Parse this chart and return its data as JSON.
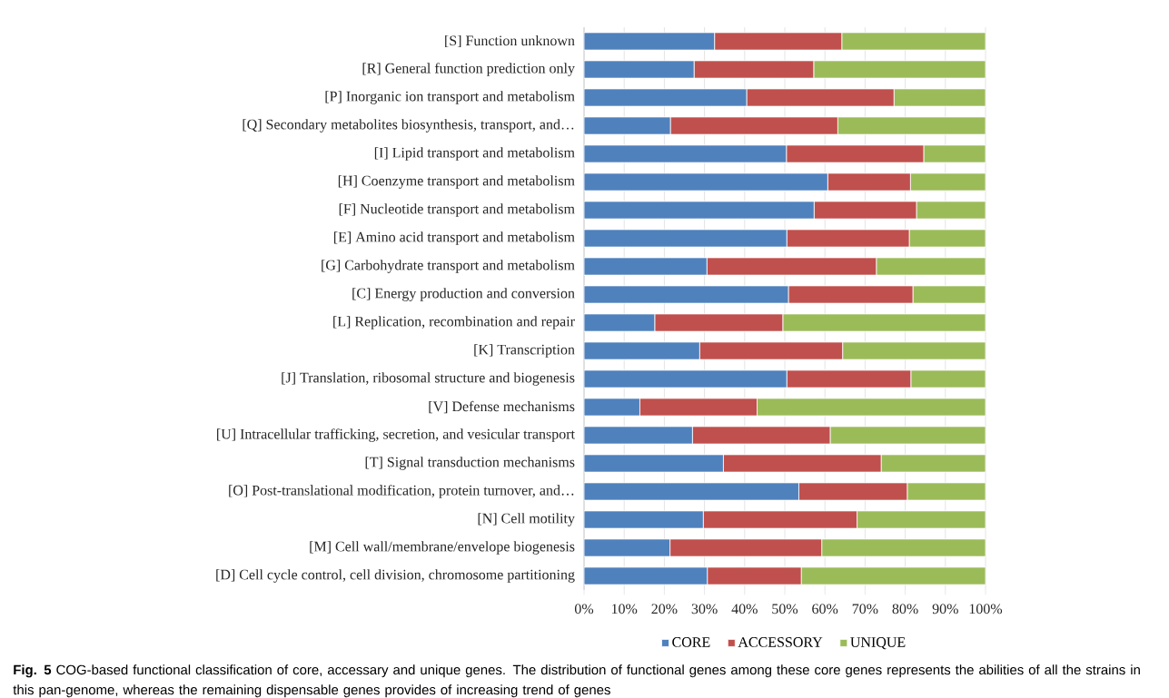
{
  "chart_data": {
    "type": "bar",
    "orientation": "horizontal",
    "stacked": true,
    "categories": [
      "[S] Function unknown",
      "[R] General function prediction only",
      "[P] Inorganic ion transport and metabolism",
      "[Q] Secondary metabolites biosynthesis, transport, and…",
      "[I] Lipid transport and metabolism",
      "[H] Coenzyme transport and metabolism",
      "[F] Nucleotide transport and metabolism",
      "[E] Amino acid transport and metabolism",
      "[G] Carbohydrate transport and metabolism",
      "[C] Energy production and conversion",
      "[L] Replication, recombination and repair",
      "[K] Transcription",
      "[J] Translation, ribosomal structure and biogenesis",
      "[V] Defense mechanisms",
      "[U] Intracellular trafficking, secretion, and vesicular transport",
      "[T] Signal transduction mechanisms",
      "[O] Post-translational modification, protein turnover, and…",
      "[N] Cell motility",
      "[M] Cell wall/membrane/envelope biogenesis",
      "[D] Cell cycle control, cell division, chromosome partitioning"
    ],
    "series": [
      {
        "name": "CORE",
        "color": "#4f81bd",
        "values": [
          32.5,
          27.4,
          40.5,
          21.5,
          50.4,
          60.7,
          57.3,
          50.5,
          30.6,
          50.9,
          17.6,
          28.8,
          50.5,
          13.9,
          27.0,
          34.7,
          53.5,
          29.7,
          21.4,
          30.7
        ]
      },
      {
        "name": "ACCESSORY",
        "color": "#c0504d",
        "values": [
          31.7,
          29.8,
          36.7,
          41.7,
          34.2,
          20.6,
          25.5,
          30.5,
          42.2,
          31.0,
          31.9,
          35.6,
          30.9,
          29.2,
          34.3,
          39.3,
          27.0,
          38.3,
          37.8,
          23.4
        ]
      },
      {
        "name": "UNIQUE",
        "color": "#9bbb59",
        "values": [
          35.8,
          42.8,
          22.8,
          36.8,
          15.4,
          18.7,
          17.2,
          19.0,
          27.2,
          18.1,
          50.5,
          35.6,
          18.6,
          56.9,
          38.7,
          26.0,
          19.5,
          32.0,
          40.8,
          45.9
        ]
      }
    ],
    "xlim": [
      0,
      100
    ],
    "xticks": [
      {
        "value": 0,
        "label": "0%"
      },
      {
        "value": 10,
        "label": "10%"
      },
      {
        "value": 20,
        "label": "20%"
      },
      {
        "value": 30,
        "label": "30%"
      },
      {
        "value": 40,
        "label": "40%"
      },
      {
        "value": 50,
        "label": "50%"
      },
      {
        "value": 60,
        "label": "60%"
      },
      {
        "value": 70,
        "label": "70%"
      },
      {
        "value": 80,
        "label": "80%"
      },
      {
        "value": 90,
        "label": "90%"
      },
      {
        "value": 100,
        "label": "100%"
      }
    ],
    "grid": "x",
    "legend": "bottom",
    "annotations": [
      "**Fig. 5** COG-based functional classification of core, accessary and unique genes. The distribution of functional genes among these core genes represents the abilities of all the strains in this pan-genome, whereas the remaining dispensable genes provides of increasing trend of genes"
    ]
  }
}
